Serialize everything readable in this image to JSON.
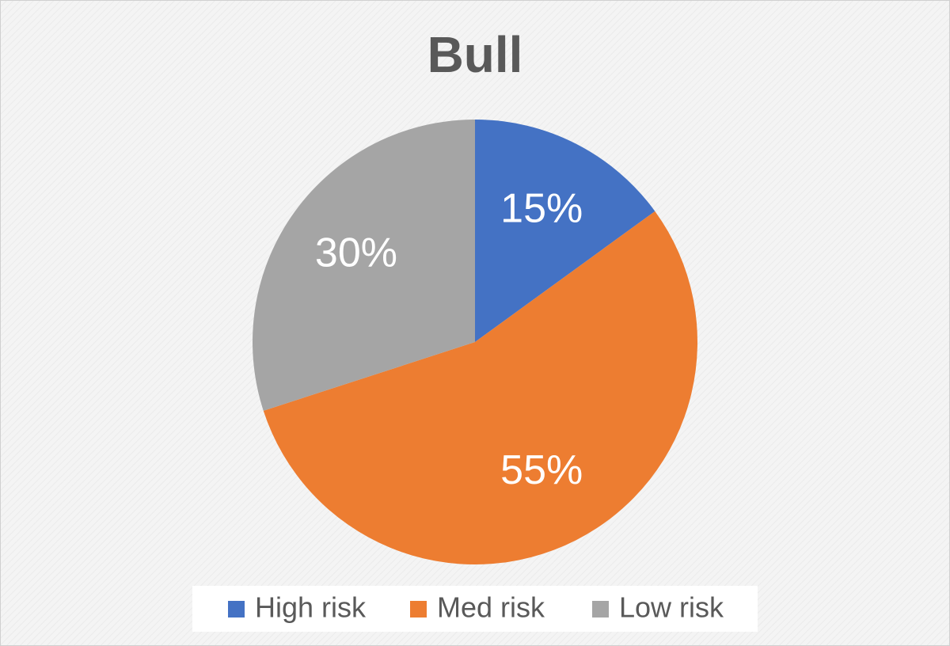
{
  "chart_data": {
    "type": "pie",
    "title": "Bull",
    "categories": [
      "High risk",
      "Med risk",
      "Low risk"
    ],
    "values": [
      15,
      55,
      30
    ],
    "value_labels": [
      "15%",
      "55%",
      "30%"
    ],
    "colors": [
      "#4472c4",
      "#ed7d31",
      "#a5a5a5"
    ],
    "legend": "bottom"
  }
}
